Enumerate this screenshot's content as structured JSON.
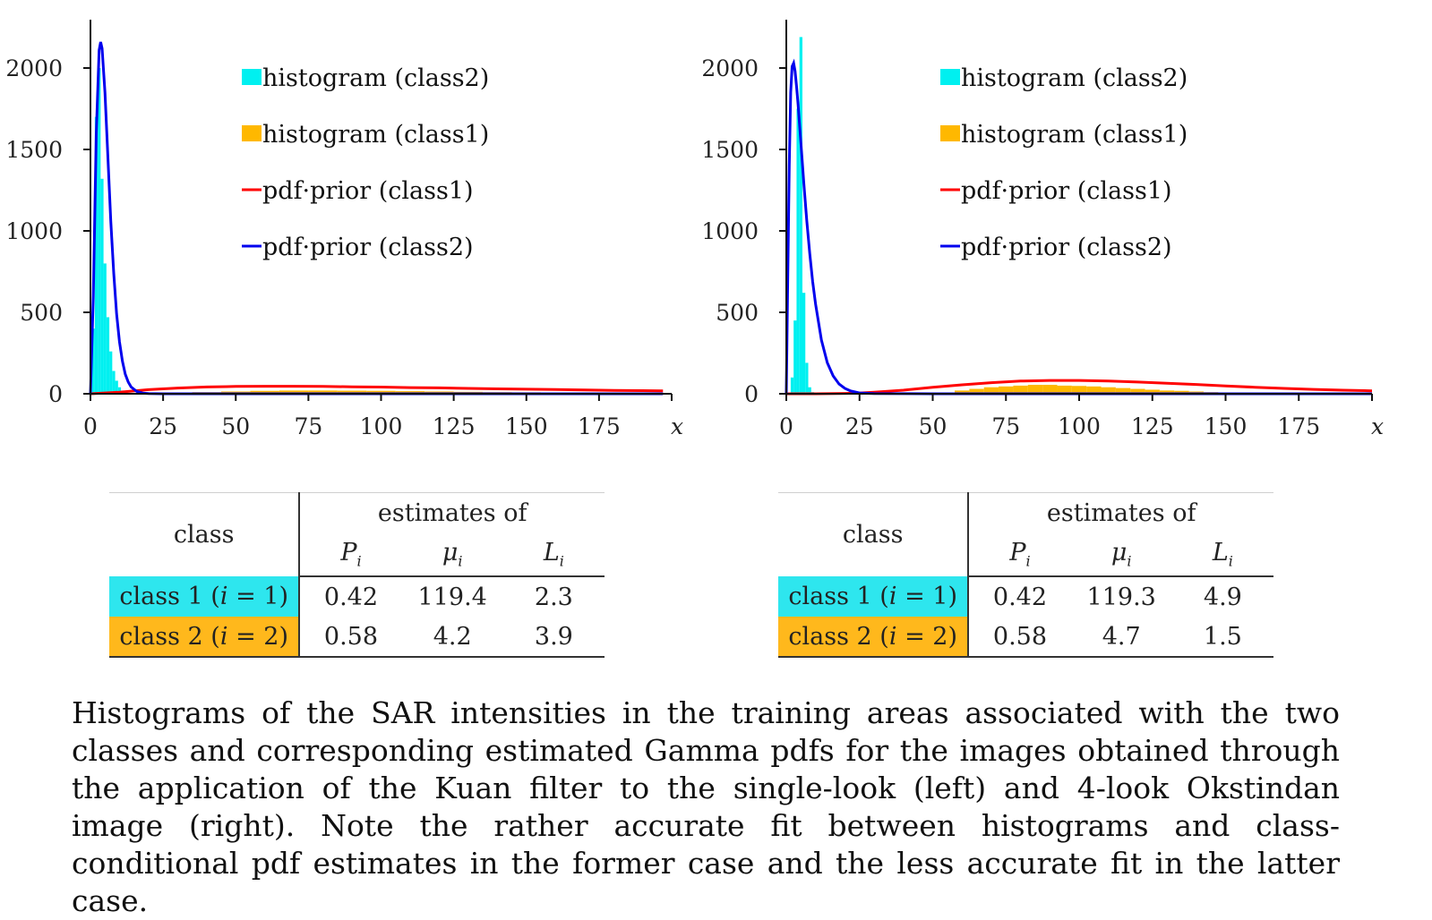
{
  "chart_data": [
    {
      "type": "bar+line",
      "title": "",
      "xlabel": "x",
      "ylabel": "",
      "xlim": [
        0,
        200
      ],
      "ylim": [
        0,
        2300
      ],
      "x_ticks": [
        "0",
        "25",
        "50",
        "75",
        "100",
        "125",
        "150",
        "175"
      ],
      "y_ticks": [
        "0",
        "500",
        "1000",
        "1500",
        "2000"
      ],
      "legend": [
        "histogram (class2)",
        "histogram (class1)",
        "pdf·prior (class1)",
        "pdf·prior (class2)"
      ],
      "legend_position": "top-center",
      "series": [
        {
          "name": "histogram (class2)",
          "kind": "bar",
          "color": "#00f0f0",
          "x": [
            1,
            2,
            3,
            4,
            5,
            6,
            7,
            8,
            9,
            10,
            11,
            12
          ],
          "values": [
            400,
            1700,
            2000,
            1320,
            800,
            470,
            260,
            140,
            80,
            40,
            20,
            10
          ]
        },
        {
          "name": "histogram (class1)",
          "kind": "bar",
          "color": "#ffb800",
          "x": [
            40,
            50,
            60,
            70,
            80,
            90,
            100,
            110,
            120,
            130,
            140,
            150,
            160,
            170,
            180,
            190
          ],
          "values": [
            10,
            14,
            18,
            20,
            20,
            19,
            18,
            16,
            14,
            12,
            10,
            9,
            8,
            7,
            6,
            5
          ]
        },
        {
          "name": "pdf·prior (class1)",
          "kind": "line",
          "color": "#ff0000",
          "x": [
            0,
            10,
            20,
            30,
            40,
            50,
            60,
            70,
            80,
            90,
            100,
            110,
            120,
            130,
            140,
            150,
            160,
            170,
            180,
            190,
            197
          ],
          "values": [
            0,
            10,
            25,
            35,
            42,
            45,
            46,
            46,
            45,
            43,
            41,
            38,
            36,
            33,
            30,
            28,
            26,
            23,
            21,
            19,
            18
          ]
        },
        {
          "name": "pdf·prior (class2)",
          "kind": "line",
          "color": "#0000ee",
          "x": [
            0,
            1,
            2,
            3,
            3.5,
            4,
            5,
            6,
            7,
            8,
            9,
            10,
            11,
            12,
            13,
            14,
            16,
            18,
            20,
            25,
            50,
            100,
            150,
            197
          ],
          "values": [
            0,
            600,
            1600,
            2110,
            2160,
            2120,
            1850,
            1450,
            1060,
            740,
            490,
            320,
            200,
            120,
            72,
            42,
            14,
            4,
            1,
            0,
            0,
            0,
            0,
            0
          ]
        }
      ]
    },
    {
      "type": "bar+line",
      "title": "",
      "xlabel": "x",
      "ylabel": "",
      "xlim": [
        0,
        200
      ],
      "ylim": [
        0,
        2300
      ],
      "x_ticks": [
        "0",
        "25",
        "50",
        "75",
        "100",
        "125",
        "150",
        "175"
      ],
      "y_ticks": [
        "0",
        "500",
        "1000",
        "1500",
        "2000"
      ],
      "legend": [
        "histogram (class2)",
        "histogram (class1)",
        "pdf·prior (class1)",
        "pdf·prior (class2)"
      ],
      "legend_position": "top-center",
      "series": [
        {
          "name": "histogram (class2)",
          "kind": "bar",
          "color": "#00f0f0",
          "x": [
            2,
            3,
            4,
            5,
            6,
            7,
            8,
            9
          ],
          "values": [
            100,
            450,
            1750,
            2190,
            620,
            190,
            40,
            10
          ]
        },
        {
          "name": "histogram (class1)",
          "kind": "bar",
          "color": "#ffb800",
          "x": [
            60,
            65,
            70,
            75,
            80,
            85,
            90,
            95,
            100,
            105,
            110,
            115,
            120,
            125,
            130,
            135,
            140,
            145,
            150
          ],
          "values": [
            20,
            30,
            40,
            45,
            50,
            55,
            55,
            50,
            48,
            45,
            40,
            35,
            30,
            25,
            20,
            18,
            14,
            10,
            6
          ]
        },
        {
          "name": "pdf·prior (class1)",
          "kind": "line",
          "color": "#ff0000",
          "x": [
            0,
            10,
            20,
            25,
            30,
            40,
            50,
            60,
            70,
            80,
            90,
            100,
            110,
            120,
            130,
            140,
            150,
            160,
            170,
            180,
            190,
            200
          ],
          "values": [
            0,
            0,
            2,
            5,
            10,
            22,
            40,
            55,
            68,
            78,
            82,
            82,
            78,
            72,
            65,
            57,
            48,
            40,
            33,
            27,
            22,
            18
          ]
        },
        {
          "name": "pdf·prior (class2)",
          "kind": "line",
          "color": "#0000ee",
          "x": [
            0,
            0.5,
            1,
            1.5,
            2,
            2.5,
            3,
            3.5,
            4,
            5,
            6,
            7,
            8,
            9,
            10,
            12,
            14,
            16,
            18,
            20,
            22,
            25,
            30,
            50,
            100,
            150,
            200
          ],
          "values": [
            0,
            700,
            1400,
            1850,
            2010,
            2030,
            1980,
            1890,
            1780,
            1540,
            1290,
            1060,
            860,
            690,
            550,
            330,
            190,
            110,
            60,
            33,
            17,
            5,
            1,
            0,
            0,
            0,
            0
          ]
        }
      ]
    }
  ],
  "tables": [
    {
      "header_class": "class",
      "header_estimates": "estimates of",
      "sym_p": "P",
      "sym_mu": "μ",
      "sym_l": "L",
      "sub_i": "i",
      "rows": [
        {
          "label": "class 1 (",
          "idx": "i",
          "eq": " = 1)",
          "p": "0.42",
          "mu": "119.4",
          "l": "2.3"
        },
        {
          "label": "class 2 (",
          "idx": "i",
          "eq": " = 2)",
          "p": "0.58",
          "mu": "4.2",
          "l": "3.9"
        }
      ]
    },
    {
      "header_class": "class",
      "header_estimates": "estimates of",
      "sym_p": "P",
      "sym_mu": "μ",
      "sym_l": "L",
      "sub_i": "i",
      "rows": [
        {
          "label": "class 1 (",
          "idx": "i",
          "eq": " = 1)",
          "p": "0.42",
          "mu": "119.3",
          "l": "4.9"
        },
        {
          "label": "class 2 (",
          "idx": "i",
          "eq": " = 2)",
          "p": "0.58",
          "mu": "4.7",
          "l": "1.5"
        }
      ]
    }
  ],
  "caption": "Histograms of the SAR intensities in the training areas associated with the two classes and corresponding estimated Gamma pdfs for the images obtained through the application of the Kuan filter to the single-look (left) and 4-look Okstindan image (right). Note the rather accurate fit between histograms and class-conditional pdf estimates in the former case and the less accurate fit in the latter case."
}
